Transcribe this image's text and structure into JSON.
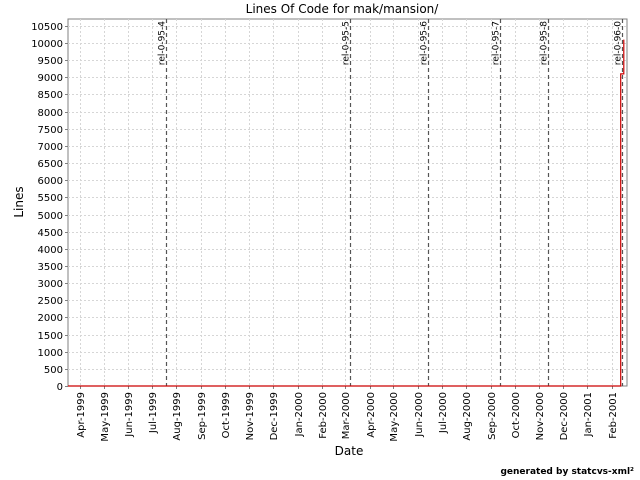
{
  "chart_data": {
    "type": "line",
    "title": "Lines Of Code for mak/mansion/",
    "xlabel": "Date",
    "ylabel": "Lines",
    "x_axis_type": "date",
    "xlim": [
      "1999-03-17",
      "2001-02-20"
    ],
    "ylim": [
      0,
      10700
    ],
    "y_ticks": [
      0,
      500,
      1000,
      1500,
      2000,
      2500,
      3000,
      3500,
      4000,
      4500,
      5000,
      5500,
      6000,
      6500,
      7000,
      7500,
      8000,
      8500,
      9000,
      9500,
      10000,
      10500
    ],
    "x_ticks": [
      {
        "date": "1999-04-01",
        "label": "Apr-1999"
      },
      {
        "date": "1999-05-01",
        "label": "May-1999"
      },
      {
        "date": "1999-06-01",
        "label": "Jun-1999"
      },
      {
        "date": "1999-07-01",
        "label": "Jul-1999"
      },
      {
        "date": "1999-08-01",
        "label": "Aug-1999"
      },
      {
        "date": "1999-09-01",
        "label": "Sep-1999"
      },
      {
        "date": "1999-10-01",
        "label": "Oct-1999"
      },
      {
        "date": "1999-11-01",
        "label": "Nov-1999"
      },
      {
        "date": "1999-12-01",
        "label": "Dec-1999"
      },
      {
        "date": "2000-01-01",
        "label": "Jan-2000"
      },
      {
        "date": "2000-02-01",
        "label": "Feb-2000"
      },
      {
        "date": "2000-03-01",
        "label": "Mar-2000"
      },
      {
        "date": "2000-04-01",
        "label": "Apr-2000"
      },
      {
        "date": "2000-05-01",
        "label": "May-2000"
      },
      {
        "date": "2000-06-01",
        "label": "Jun-2000"
      },
      {
        "date": "2000-07-01",
        "label": "Jul-2000"
      },
      {
        "date": "2000-08-01",
        "label": "Aug-2000"
      },
      {
        "date": "2000-09-01",
        "label": "Sep-2000"
      },
      {
        "date": "2000-10-01",
        "label": "Oct-2000"
      },
      {
        "date": "2000-11-01",
        "label": "Nov-2000"
      },
      {
        "date": "2000-12-01",
        "label": "Dec-2000"
      },
      {
        "date": "2001-01-01",
        "label": "Jan-2001"
      },
      {
        "date": "2001-02-01",
        "label": "Feb-2001"
      }
    ],
    "series": [
      {
        "color": "#cc0000",
        "points": [
          {
            "x": "1999-03-17",
            "y": 0
          },
          {
            "x": "2001-02-12",
            "y": 0
          },
          {
            "x": "2001-02-12",
            "y": 9100
          },
          {
            "x": "2001-02-16",
            "y": 9100
          },
          {
            "x": "2001-02-16",
            "y": 10100
          }
        ]
      }
    ],
    "markers": [
      {
        "date": "1999-07-19",
        "label": "rel-0-95-4"
      },
      {
        "date": "2000-03-07",
        "label": "rel-0-95-5"
      },
      {
        "date": "2000-06-14",
        "label": "rel-0-95-6"
      },
      {
        "date": "2000-09-13",
        "label": "rel-0-95-7"
      },
      {
        "date": "2000-11-12",
        "label": "rel-0-95-8"
      },
      {
        "date": "2001-02-14",
        "label": "rel-0-96-0"
      }
    ],
    "grid": true
  },
  "footer": "generated by statcvs-xml²"
}
